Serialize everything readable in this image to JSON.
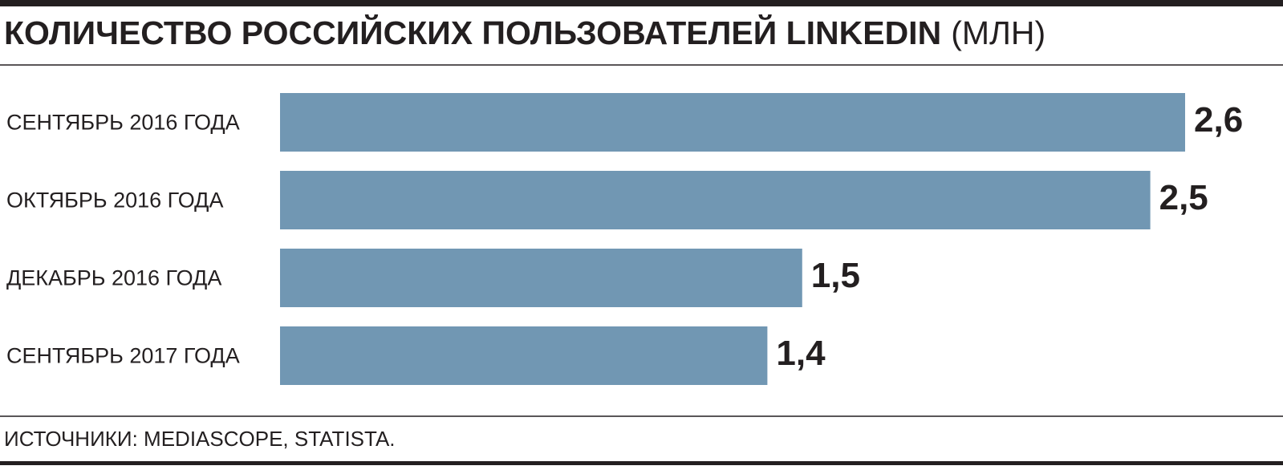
{
  "chart_data": {
    "type": "bar",
    "orientation": "horizontal",
    "title": "КОЛИЧЕСТВО РОССИЙСКИХ ПОЛЬЗОВАТЕЛЕЙ LINKEDIN",
    "unit": "(МЛН)",
    "categories": [
      "СЕНТЯБРЬ 2016 ГОДА",
      "ОКТЯБРЬ 2016 ГОДА",
      "ДЕКАБРЬ 2016 ГОДА",
      "СЕНТЯБРЬ 2017 ГОДА"
    ],
    "values": [
      2.6,
      2.5,
      1.5,
      1.4
    ],
    "value_labels": [
      "2,6",
      "2,5",
      "1,5",
      "1,4"
    ],
    "color": "#7197b3",
    "source": "ИСТОЧНИКИ: MEDIASCOPE, STATISTA."
  }
}
